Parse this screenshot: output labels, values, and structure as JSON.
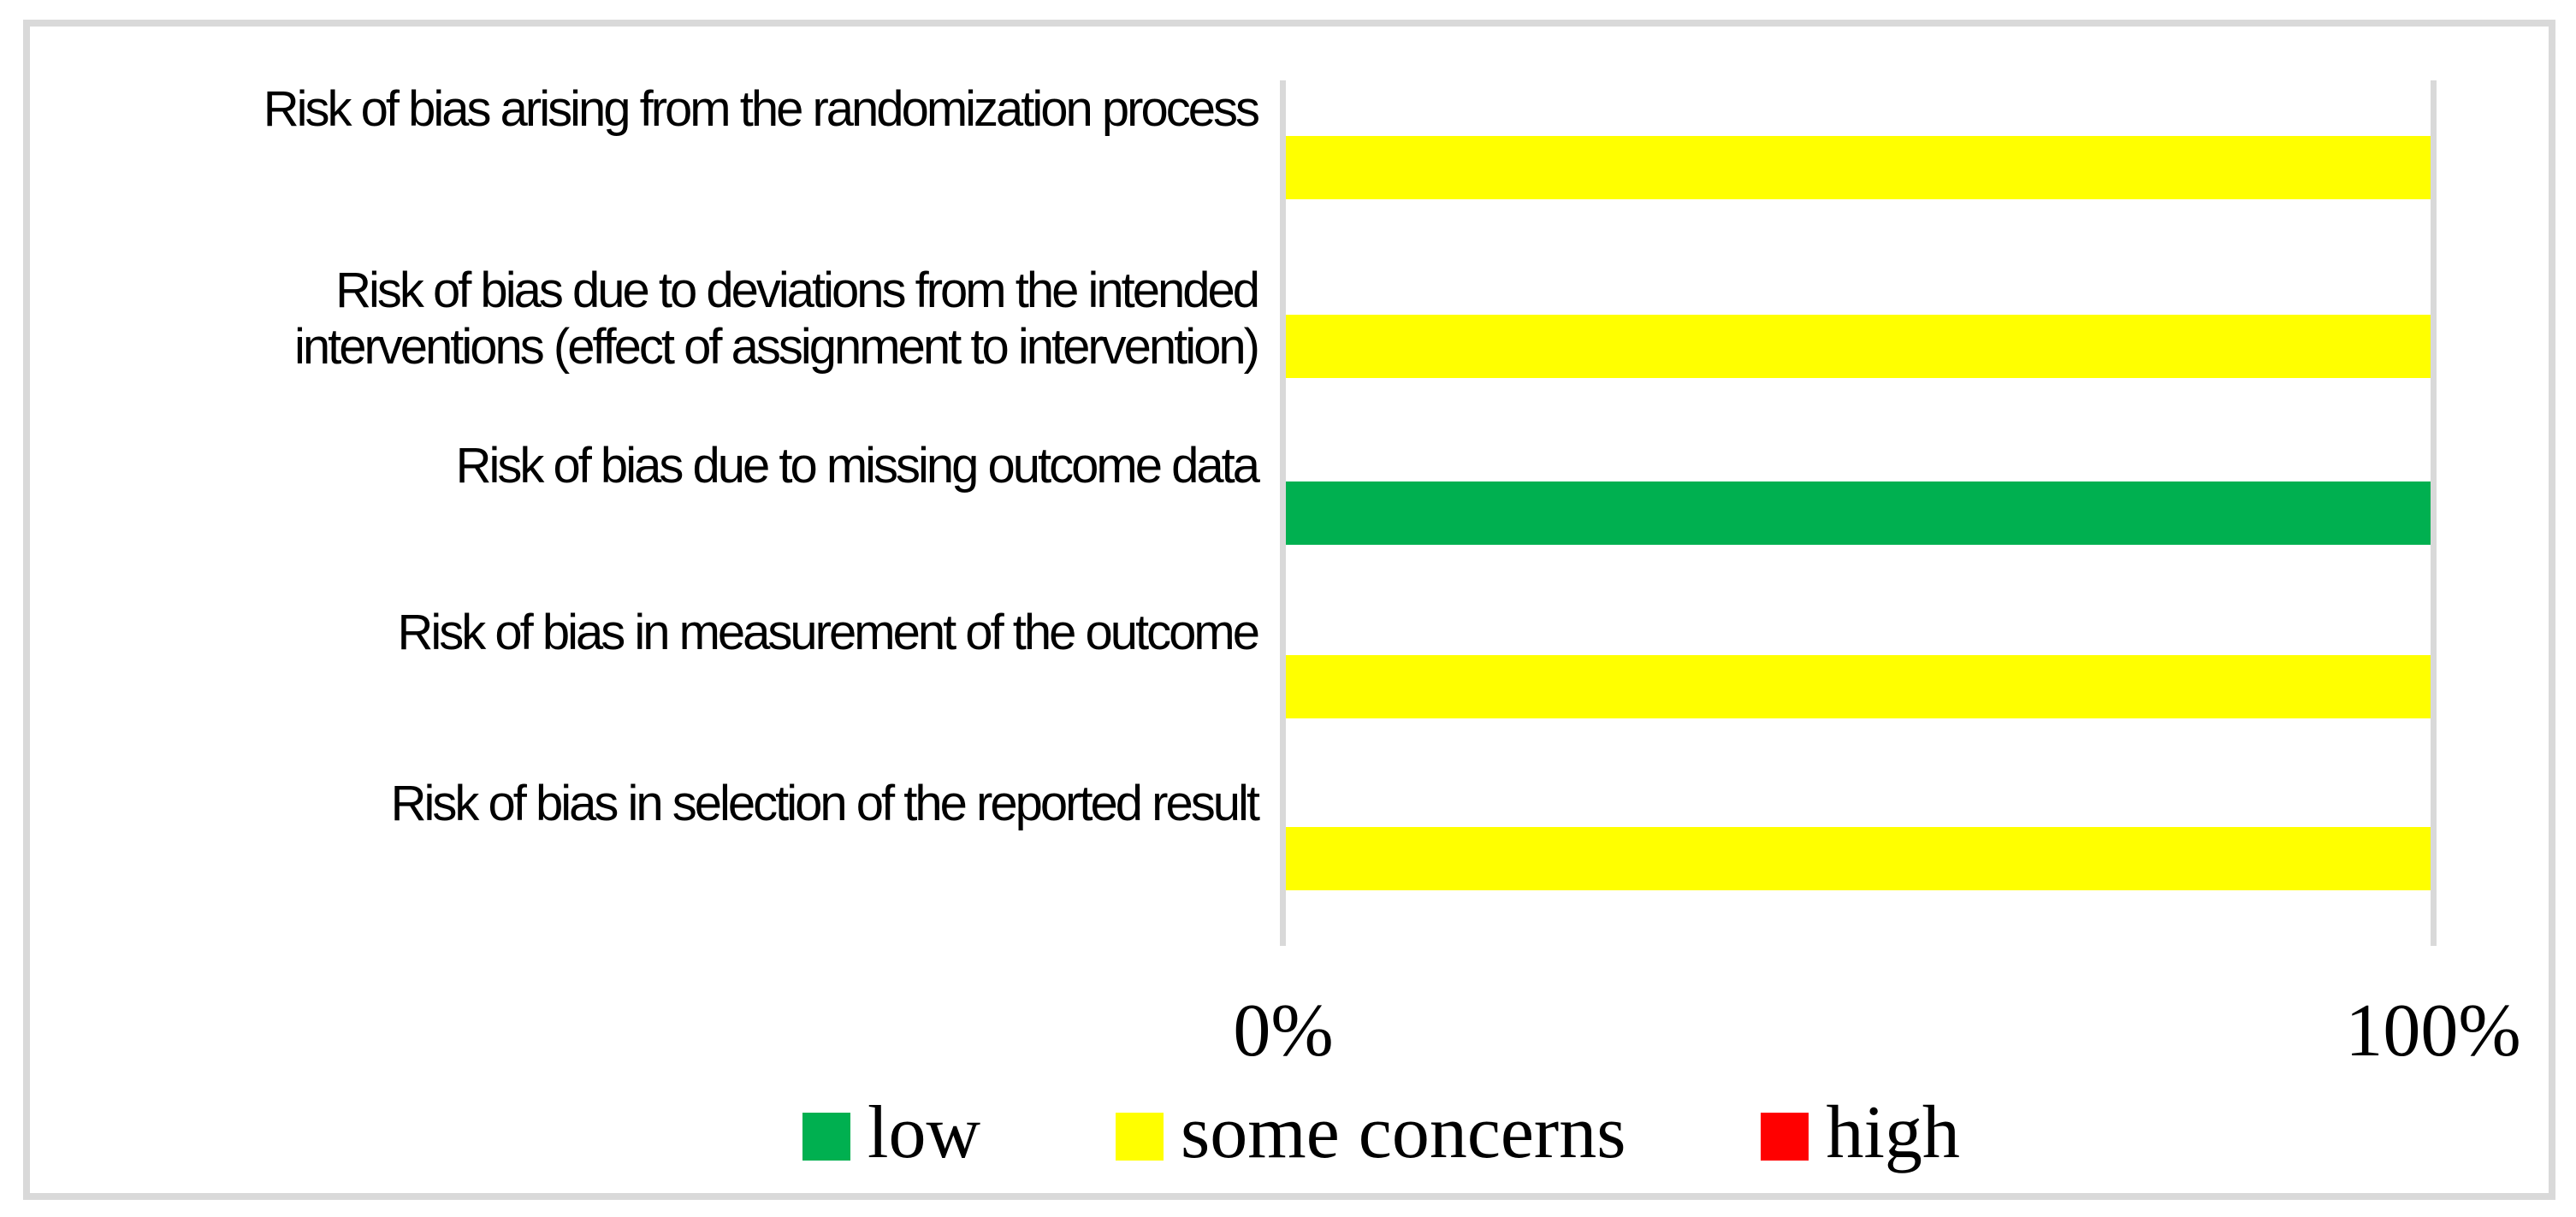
{
  "figure": {
    "background_color": "#FFFFFF",
    "border_color": "#D9D9D9"
  },
  "chart_data": {
    "type": "bar",
    "orientation": "horizontal",
    "stacked_percent": true,
    "title": "",
    "xlabel": "",
    "ylabel": "",
    "categories": [
      {
        "label": "Risk of bias arising from the randomization process",
        "lines": [
          "Risk of bias arising from the randomization process"
        ]
      },
      {
        "label": "Risk of bias due to deviations from the intended interventions (effect of assignment to intervention)",
        "lines": [
          "Risk of bias due to deviations from the intended",
          "interventions (effect of assignment to intervention)"
        ]
      },
      {
        "label": "Risk of bias due to missing outcome data",
        "lines": [
          "Risk of bias due to missing outcome data"
        ]
      },
      {
        "label": "Risk of bias in measurement of the outcome",
        "lines": [
          "Risk of bias in measurement of the outcome"
        ]
      },
      {
        "label": "Risk of bias in selection of the reported result",
        "lines": [
          "Risk of bias in selection of the reported result"
        ]
      }
    ],
    "series": [
      {
        "name": "low",
        "color": "#00B050",
        "values": [
          0,
          0,
          100,
          0,
          0
        ]
      },
      {
        "name": "some concerns",
        "color": "#FFFF00",
        "values": [
          100,
          100,
          0,
          100,
          100
        ]
      },
      {
        "name": "high",
        "color": "#FF0000",
        "values": [
          0,
          0,
          0,
          0,
          0
        ]
      }
    ],
    "x_axis": {
      "range": [
        0,
        100
      ],
      "ticks": [
        "0%",
        "100%"
      ],
      "tick_positions_percent": [
        0,
        100
      ]
    },
    "gridlines": {
      "color": "#D9D9D9",
      "positions_percent": [
        0,
        100
      ]
    },
    "legend": {
      "position": "bottom",
      "entries": [
        {
          "label": "low",
          "color": "#00B050"
        },
        {
          "label": "some concerns",
          "color": "#FFFF00"
        },
        {
          "label": "high",
          "color": "#FF0000"
        }
      ]
    }
  }
}
